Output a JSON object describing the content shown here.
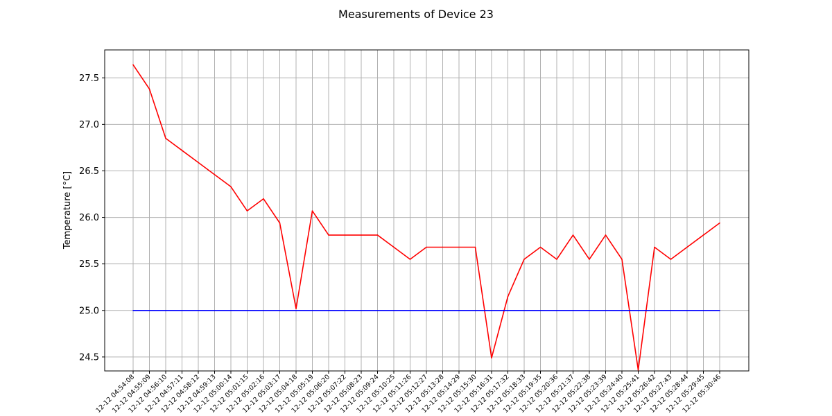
{
  "chart_data": {
    "type": "line",
    "title": "Measurements of Device 23",
    "xlabel": "",
    "ylabel": "Temperature [°C]",
    "ylim": [
      24.35,
      27.8
    ],
    "yticks": [
      24.5,
      25.0,
      25.5,
      26.0,
      26.5,
      27.0,
      27.5
    ],
    "ytick_labels": [
      "24.5",
      "25.0",
      "25.5",
      "26.0",
      "26.5",
      "27.0",
      "27.5"
    ],
    "grid": true,
    "x": [
      "12-12 04:54:08",
      "12-12 04:55:09",
      "12-12 04:56:10",
      "12-12 04:57:11",
      "12-12 04:58:12",
      "12-12 04:59:13",
      "12-12 05:00:14",
      "12-12 05:01:15",
      "12-12 05:02:16",
      "12-12 05:03:17",
      "12-12 05:04:18",
      "12-12 05:05:19",
      "12-12 05:06:20",
      "12-12 05:07:22",
      "12-12 05:08:23",
      "12-12 05:09:24",
      "12-12 05:10:25",
      "12-12 05:11:26",
      "12-12 05:12:27",
      "12-12 05:13:28",
      "12-12 05:14:29",
      "12-12 05:15:30",
      "12-12 05:16:31",
      "12-12 05:17:32",
      "12-12 05:18:33",
      "12-12 05:19:35",
      "12-12 05:20:36",
      "12-12 05:21:37",
      "12-12 05:22:38",
      "12-12 05:23:39",
      "12-12 05:24:40",
      "12-12 05:25:41",
      "12-12 05:26:42",
      "12-12 05:27:43",
      "12-12 05:28:44",
      "12-12 05:29:45",
      "12-12 05:30:46"
    ],
    "series": [
      {
        "color": "#ff0000",
        "values": [
          27.64,
          27.38,
          26.85,
          26.72,
          26.59,
          26.46,
          26.33,
          26.07,
          26.2,
          25.94,
          25.02,
          26.07,
          25.81,
          25.81,
          25.81,
          25.81,
          25.68,
          25.55,
          25.68,
          25.68,
          25.68,
          25.68,
          24.49,
          25.15,
          25.55,
          25.68,
          25.55,
          25.81,
          25.55,
          25.81,
          25.55,
          24.36,
          25.68,
          25.55,
          25.68,
          25.81,
          25.94
        ]
      },
      {
        "color": "#0000ff",
        "values": [
          25.0,
          25.0,
          25.0,
          25.0,
          25.0,
          25.0,
          25.0,
          25.0,
          25.0,
          25.0,
          25.0,
          25.0,
          25.0,
          25.0,
          25.0,
          25.0,
          25.0,
          25.0,
          25.0,
          25.0,
          25.0,
          25.0,
          25.0,
          25.0,
          25.0,
          25.0,
          25.0,
          25.0,
          25.0,
          25.0,
          25.0,
          25.0,
          25.0,
          25.0,
          25.0,
          25.0,
          25.0
        ]
      }
    ]
  }
}
